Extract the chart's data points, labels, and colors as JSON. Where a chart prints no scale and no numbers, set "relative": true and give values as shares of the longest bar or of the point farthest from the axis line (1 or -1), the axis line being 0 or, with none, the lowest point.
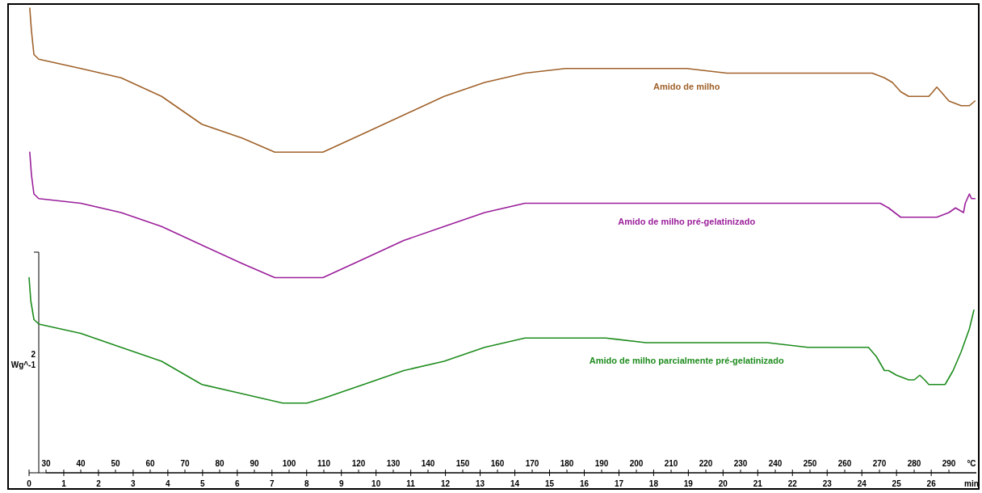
{
  "chart_data": {
    "type": "line",
    "relative": true,
    "ylabel": "2 Wg^-1",
    "xlabel": "min",
    "x2label": "°C",
    "xlim": [
      0,
      27.3
    ],
    "xticks": [
      0,
      1,
      2,
      3,
      4,
      5,
      6,
      7,
      8,
      9,
      10,
      11,
      12,
      13,
      14,
      15,
      16,
      17,
      18,
      19,
      20,
      21,
      22,
      23,
      24,
      25,
      26
    ],
    "x2lim": [
      30,
      297.9
    ],
    "x2ticks": [
      30,
      40,
      50,
      60,
      70,
      80,
      90,
      100,
      110,
      120,
      130,
      140,
      150,
      160,
      170,
      180,
      190,
      200,
      210,
      220,
      230,
      240,
      250,
      260,
      270,
      280,
      290
    ],
    "legend": false,
    "grid": false,
    "marker": "none",
    "line_style": "solid",
    "series": [
      {
        "name": "Amido de milho",
        "color": "#a0622a",
        "x": [
          0.02,
          0.07,
          0.14,
          0.28,
          1.49,
          2.65,
          3.82,
          4.98,
          6.15,
          7.08,
          7.77,
          8.47,
          9.64,
          10.8,
          11.96,
          13.13,
          14.29,
          15.46,
          16.62,
          17.78,
          18.95,
          20.11,
          21.28,
          22.44,
          23.6,
          24.3,
          24.65,
          24.88,
          25.12,
          25.35,
          25.7,
          25.93,
          26.05,
          26.16,
          26.28,
          26.51,
          26.86,
          27.1,
          27.26
        ],
        "values": [
          1.0,
          0.95,
          0.9,
          0.89,
          0.87,
          0.85,
          0.81,
          0.75,
          0.72,
          0.69,
          0.69,
          0.69,
          0.73,
          0.77,
          0.81,
          0.84,
          0.86,
          0.87,
          0.87,
          0.87,
          0.87,
          0.86,
          0.86,
          0.86,
          0.86,
          0.86,
          0.85,
          0.84,
          0.82,
          0.81,
          0.81,
          0.81,
          0.82,
          0.83,
          0.82,
          0.8,
          0.79,
          0.79,
          0.8
        ]
      },
      {
        "name": "Amido de milho pré-gelatinizado",
        "color": "#9b1f9b",
        "x": [
          0.02,
          0.07,
          0.14,
          0.28,
          1.49,
          2.65,
          3.82,
          4.98,
          6.15,
          7.08,
          7.77,
          8.47,
          9.64,
          10.8,
          11.96,
          13.13,
          14.29,
          15.46,
          16.62,
          17.78,
          18.95,
          20.11,
          21.28,
          22.44,
          23.6,
          24.42,
          24.53,
          24.77,
          25.12,
          25.35,
          25.7,
          26.16,
          26.51,
          26.7,
          26.93,
          26.98,
          27.1,
          27.16,
          27.26
        ],
        "values": [
          0.69,
          0.64,
          0.6,
          0.59,
          0.58,
          0.56,
          0.53,
          0.49,
          0.45,
          0.42,
          0.42,
          0.42,
          0.46,
          0.5,
          0.53,
          0.56,
          0.58,
          0.58,
          0.58,
          0.58,
          0.58,
          0.58,
          0.58,
          0.58,
          0.58,
          0.58,
          0.58,
          0.57,
          0.55,
          0.55,
          0.55,
          0.55,
          0.56,
          0.57,
          0.56,
          0.58,
          0.6,
          0.59,
          0.59
        ]
      },
      {
        "name": "Amido de milho parcialmente pré-gelatinizado",
        "color": "#1e8c1e",
        "x": [
          0,
          0.05,
          0.14,
          0.28,
          1.49,
          2.65,
          3.82,
          4.98,
          6.15,
          7.31,
          8.01,
          8.47,
          9.64,
          10.8,
          11.96,
          13.13,
          14.29,
          15.46,
          16.62,
          17.78,
          18.95,
          20.11,
          21.28,
          22.44,
          23.6,
          24.19,
          24.42,
          24.65,
          24.77,
          25.0,
          25.35,
          25.51,
          25.67,
          25.81,
          25.93,
          26.16,
          26.4,
          26.63,
          26.86,
          27.1,
          27.23
        ],
        "values": [
          0.42,
          0.37,
          0.33,
          0.32,
          0.3,
          0.27,
          0.24,
          0.19,
          0.17,
          0.15,
          0.15,
          0.16,
          0.19,
          0.22,
          0.24,
          0.27,
          0.29,
          0.29,
          0.29,
          0.28,
          0.28,
          0.28,
          0.28,
          0.27,
          0.27,
          0.27,
          0.25,
          0.22,
          0.22,
          0.21,
          0.2,
          0.2,
          0.21,
          0.2,
          0.19,
          0.19,
          0.19,
          0.22,
          0.26,
          0.31,
          0.35
        ]
      }
    ]
  }
}
